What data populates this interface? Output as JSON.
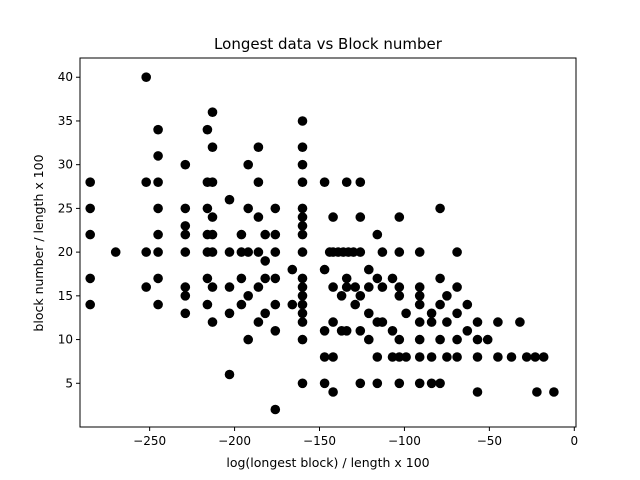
{
  "chart_data": {
    "type": "scatter",
    "title": "Longest data vs Block number",
    "xlabel": "log(longest block) / length x 100",
    "ylabel": "block number / length x 100",
    "xlim": [
      -291,
      1
    ],
    "ylim": [
      0,
      42.2
    ],
    "xticks": [
      -250,
      -200,
      -150,
      -100,
      -50,
      0
    ],
    "yticks": [
      5,
      10,
      15,
      20,
      25,
      30,
      35,
      40
    ],
    "xtick_labels": [
      "−250",
      "−200",
      "−150",
      "−100",
      "−50",
      "0"
    ],
    "ytick_labels": [
      "5",
      "10",
      "15",
      "20",
      "25",
      "30",
      "35",
      "40"
    ],
    "grid": false,
    "marker_color": "#000000",
    "series": [
      {
        "points": [
          [
            -285,
            28
          ],
          [
            -285,
            25
          ],
          [
            -285,
            22
          ],
          [
            -285,
            17
          ],
          [
            -285,
            14
          ],
          [
            -270,
            20
          ],
          [
            -252,
            40
          ],
          [
            -252,
            28
          ],
          [
            -252,
            20
          ],
          [
            -252,
            16
          ],
          [
            -245,
            34
          ],
          [
            -245,
            31
          ],
          [
            -245,
            28
          ],
          [
            -245,
            25
          ],
          [
            -245,
            22
          ],
          [
            -245,
            20
          ],
          [
            -245,
            17
          ],
          [
            -245,
            14
          ],
          [
            -229,
            30
          ],
          [
            -229,
            25
          ],
          [
            -229,
            23
          ],
          [
            -229,
            22
          ],
          [
            -229,
            20
          ],
          [
            -229,
            16
          ],
          [
            -229,
            15
          ],
          [
            -229,
            13
          ],
          [
            -216,
            34
          ],
          [
            -216,
            28
          ],
          [
            -216,
            25
          ],
          [
            -216,
            22
          ],
          [
            -216,
            20
          ],
          [
            -216,
            17
          ],
          [
            -216,
            14
          ],
          [
            -213,
            36
          ],
          [
            -213,
            32
          ],
          [
            -213,
            28
          ],
          [
            -213,
            24
          ],
          [
            -213,
            22
          ],
          [
            -213,
            20
          ],
          [
            -213,
            16
          ],
          [
            -213,
            12
          ],
          [
            -203,
            26
          ],
          [
            -203,
            20
          ],
          [
            -203,
            16
          ],
          [
            -203,
            13
          ],
          [
            -203,
            6
          ],
          [
            -196,
            22
          ],
          [
            -196,
            20
          ],
          [
            -196,
            17
          ],
          [
            -196,
            14
          ],
          [
            -192,
            30
          ],
          [
            -192,
            25
          ],
          [
            -192,
            20
          ],
          [
            -192,
            15
          ],
          [
            -192,
            10
          ],
          [
            -186,
            32
          ],
          [
            -186,
            28
          ],
          [
            -186,
            24
          ],
          [
            -186,
            20
          ],
          [
            -186,
            16
          ],
          [
            -186,
            12
          ],
          [
            -182,
            22
          ],
          [
            -182,
            19
          ],
          [
            -182,
            17
          ],
          [
            -182,
            13
          ],
          [
            -176,
            25
          ],
          [
            -176,
            22
          ],
          [
            -176,
            20
          ],
          [
            -176,
            17
          ],
          [
            -176,
            14
          ],
          [
            -176,
            11
          ],
          [
            -176,
            2
          ],
          [
            -166,
            18
          ],
          [
            -166,
            14
          ],
          [
            -160,
            35
          ],
          [
            -160,
            32
          ],
          [
            -160,
            30
          ],
          [
            -160,
            28
          ],
          [
            -160,
            25
          ],
          [
            -160,
            24
          ],
          [
            -160,
            23
          ],
          [
            -160,
            22
          ],
          [
            -160,
            20
          ],
          [
            -160,
            17
          ],
          [
            -160,
            16
          ],
          [
            -160,
            15
          ],
          [
            -160,
            14
          ],
          [
            -160,
            13
          ],
          [
            -160,
            12
          ],
          [
            -160,
            10
          ],
          [
            -160,
            5
          ],
          [
            -147,
            28
          ],
          [
            -147,
            18
          ],
          [
            -147,
            11
          ],
          [
            -147,
            8
          ],
          [
            -147,
            5
          ],
          [
            -144,
            20
          ],
          [
            -142,
            20
          ],
          [
            -139,
            20
          ],
          [
            -136,
            20
          ],
          [
            -133,
            20
          ],
          [
            -130,
            20
          ],
          [
            -142,
            24
          ],
          [
            -142,
            16
          ],
          [
            -142,
            12
          ],
          [
            -142,
            8
          ],
          [
            -142,
            4
          ],
          [
            -137,
            15
          ],
          [
            -137,
            11
          ],
          [
            -134,
            28
          ],
          [
            -134,
            17
          ],
          [
            -134,
            11
          ],
          [
            -134,
            16
          ],
          [
            -129,
            16
          ],
          [
            -129,
            14
          ],
          [
            -126,
            28
          ],
          [
            -126,
            24
          ],
          [
            -126,
            20
          ],
          [
            -126,
            15
          ],
          [
            -126,
            11
          ],
          [
            -126,
            5
          ],
          [
            -121,
            18
          ],
          [
            -121,
            16
          ],
          [
            -121,
            13
          ],
          [
            -121,
            10
          ],
          [
            -116,
            22
          ],
          [
            -116,
            17
          ],
          [
            -116,
            12
          ],
          [
            -116,
            8
          ],
          [
            -116,
            5
          ],
          [
            -113,
            20
          ],
          [
            -113,
            16
          ],
          [
            -113,
            12
          ],
          [
            -107,
            17
          ],
          [
            -107,
            11
          ],
          [
            -107,
            8
          ],
          [
            -103,
            24
          ],
          [
            -103,
            20
          ],
          [
            -103,
            16
          ],
          [
            -103,
            15
          ],
          [
            -103,
            10
          ],
          [
            -103,
            8
          ],
          [
            -103,
            5
          ],
          [
            -99,
            13
          ],
          [
            -99,
            8
          ],
          [
            -91,
            20
          ],
          [
            -91,
            16
          ],
          [
            -91,
            15
          ],
          [
            -91,
            14
          ],
          [
            -91,
            12
          ],
          [
            -91,
            10
          ],
          [
            -91,
            8
          ],
          [
            -91,
            5
          ],
          [
            -84,
            13
          ],
          [
            -84,
            12
          ],
          [
            -84,
            8
          ],
          [
            -84,
            5
          ],
          [
            -79,
            25
          ],
          [
            -79,
            17
          ],
          [
            -79,
            14
          ],
          [
            -79,
            10
          ],
          [
            -79,
            5
          ],
          [
            -75,
            15
          ],
          [
            -75,
            12
          ],
          [
            -75,
            8
          ],
          [
            -69,
            20
          ],
          [
            -69,
            16
          ],
          [
            -69,
            13
          ],
          [
            -69,
            10
          ],
          [
            -69,
            8
          ],
          [
            -63,
            14
          ],
          [
            -63,
            11
          ],
          [
            -57,
            12
          ],
          [
            -57,
            10
          ],
          [
            -57,
            8
          ],
          [
            -57,
            4
          ],
          [
            -51,
            10
          ],
          [
            -45,
            12
          ],
          [
            -45,
            8
          ],
          [
            -37,
            8
          ],
          [
            -32,
            12
          ],
          [
            -28,
            8
          ],
          [
            -23,
            8
          ],
          [
            -22,
            4
          ],
          [
            -18,
            8
          ],
          [
            -12,
            4
          ]
        ]
      }
    ]
  }
}
